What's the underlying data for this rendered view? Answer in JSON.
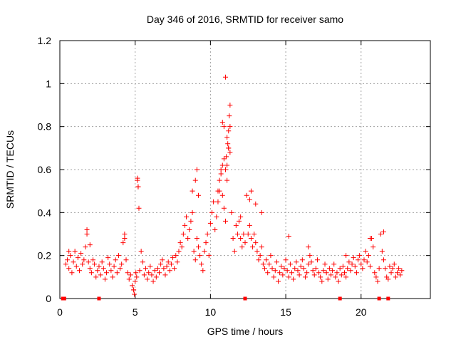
{
  "chart_data": {
    "type": "scatter",
    "title": "Day 346 of 2016, SRMTID for receiver samo",
    "xlabel": "GPS time / hours",
    "ylabel": "SRMTID / TECUs",
    "xlim": [
      0,
      24.6
    ],
    "ylim": [
      0,
      1.2
    ],
    "x_ticks": [
      0,
      5,
      10,
      15,
      20
    ],
    "x_tick_labels": [
      "0",
      "5",
      "10",
      "15",
      "20"
    ],
    "y_ticks": [
      0,
      0.2,
      0.4,
      0.6,
      0.8,
      1.0,
      1.2
    ],
    "y_tick_labels": [
      "0",
      "0.2",
      "0.4",
      "0.6",
      "0.8",
      "1",
      "1.2"
    ],
    "grid": true,
    "legend": "none",
    "marker": "plus",
    "color": "#ff0000",
    "series": [
      {
        "name": "SRMTID",
        "x": [
          0.4,
          0.5,
          0.6,
          0.7,
          0.8,
          0.9,
          1.0,
          1.1,
          1.2,
          1.3,
          1.4,
          1.5,
          1.6,
          1.7,
          1.8,
          1.9,
          2.0,
          2.1,
          2.2,
          2.3,
          2.4,
          2.5,
          2.6,
          2.7,
          2.8,
          2.9,
          3.0,
          3.1,
          3.2,
          3.3,
          3.4,
          3.5,
          3.6,
          3.7,
          3.8,
          3.9,
          4.0,
          4.1,
          4.2,
          4.3,
          4.4,
          4.5,
          4.6,
          4.7,
          4.8,
          4.9,
          5.0,
          5.05,
          5.1,
          5.15,
          5.2,
          5.25,
          5.3,
          5.4,
          5.5,
          5.6,
          5.7,
          5.8,
          5.9,
          6.0,
          6.1,
          6.2,
          6.3,
          6.4,
          6.5,
          6.6,
          6.7,
          6.8,
          6.9,
          7.0,
          7.1,
          7.2,
          7.3,
          7.4,
          7.5,
          7.6,
          7.7,
          7.8,
          7.9,
          8.0,
          8.1,
          8.2,
          8.3,
          8.4,
          8.5,
          8.6,
          8.7,
          8.8,
          8.9,
          9.0,
          9.1,
          9.2,
          9.3,
          9.4,
          9.5,
          9.6,
          9.7,
          9.8,
          9.9,
          10.0,
          10.1,
          10.2,
          10.3,
          10.4,
          10.5,
          10.6,
          10.7,
          10.8,
          10.9,
          11.0,
          11.1,
          11.2,
          11.3,
          11.4,
          11.5,
          11.6,
          11.7,
          11.8,
          11.9,
          12.0,
          12.1,
          12.2,
          12.3,
          12.4,
          12.5,
          12.6,
          12.7,
          12.8,
          12.9,
          13.0,
          13.1,
          13.2,
          13.3,
          13.4,
          13.5,
          13.6,
          13.7,
          13.8,
          13.9,
          14.0,
          14.1,
          14.2,
          14.3,
          14.4,
          14.5,
          14.6,
          14.7,
          14.8,
          14.9,
          15.0,
          15.1,
          15.2,
          15.3,
          15.4,
          15.5,
          15.6,
          15.7,
          15.8,
          15.9,
          16.0,
          16.1,
          16.2,
          16.3,
          16.4,
          16.5,
          16.6,
          16.7,
          16.8,
          16.9,
          17.0,
          17.1,
          17.2,
          17.3,
          17.4,
          17.5,
          17.6,
          17.7,
          17.8,
          17.9,
          18.0,
          18.1,
          18.2,
          18.3,
          18.4,
          18.5,
          18.6,
          18.7,
          18.8,
          18.9,
          19.0,
          19.1,
          19.2,
          19.3,
          19.4,
          19.5,
          19.6,
          19.7,
          19.8,
          19.9,
          20.0,
          20.1,
          20.2,
          20.3,
          20.4,
          20.5,
          20.6,
          20.7,
          20.8,
          20.9,
          21.0,
          21.1,
          21.2,
          21.3,
          21.4,
          21.5,
          21.6,
          21.7,
          21.8,
          21.9,
          22.0,
          22.1,
          22.2,
          22.3,
          22.4,
          22.5,
          22.6,
          22.7,
          5.15,
          5.2,
          9.1,
          9.0,
          8.8,
          9.2,
          10.5,
          10.6,
          10.7,
          10.8,
          10.9,
          11.0,
          11.05,
          11.1,
          11.15,
          11.2,
          11.25,
          11.3,
          11.0,
          10.9,
          11.1,
          11.2,
          10.8,
          11.3,
          12.6,
          12.7,
          13.4,
          12.0,
          1.8,
          4.3,
          0.6,
          2.0,
          15.2,
          20.6,
          21.5,
          4.9,
          4.95,
          13.0,
          16.5,
          19.0
        ],
        "y": [
          0.16,
          0.18,
          0.14,
          0.2,
          0.12,
          0.17,
          0.22,
          0.15,
          0.19,
          0.13,
          0.21,
          0.16,
          0.18,
          0.24,
          0.3,
          0.17,
          0.14,
          0.12,
          0.18,
          0.16,
          0.1,
          0.13,
          0.15,
          0.11,
          0.17,
          0.14,
          0.09,
          0.12,
          0.19,
          0.16,
          0.13,
          0.1,
          0.15,
          0.18,
          0.12,
          0.2,
          0.14,
          0.16,
          0.26,
          0.28,
          0.18,
          0.12,
          0.09,
          0.11,
          0.06,
          0.04,
          0.08,
          0.12,
          0.1,
          0.55,
          0.52,
          0.42,
          0.13,
          0.22,
          0.17,
          0.11,
          0.14,
          0.09,
          0.12,
          0.15,
          0.11,
          0.08,
          0.13,
          0.1,
          0.14,
          0.12,
          0.16,
          0.18,
          0.14,
          0.11,
          0.15,
          0.17,
          0.13,
          0.16,
          0.19,
          0.14,
          0.2,
          0.17,
          0.22,
          0.26,
          0.24,
          0.3,
          0.34,
          0.38,
          0.28,
          0.32,
          0.36,
          0.4,
          0.22,
          0.18,
          0.28,
          0.24,
          0.2,
          0.16,
          0.13,
          0.22,
          0.26,
          0.3,
          0.2,
          0.35,
          0.4,
          0.45,
          0.32,
          0.38,
          0.5,
          0.55,
          0.6,
          0.48,
          0.42,
          0.36,
          0.62,
          0.7,
          0.8,
          0.4,
          0.28,
          0.22,
          0.34,
          0.3,
          0.36,
          0.28,
          0.24,
          0.3,
          0.26,
          0.48,
          0.3,
          0.34,
          0.28,
          0.24,
          0.3,
          0.26,
          0.22,
          0.18,
          0.2,
          0.24,
          0.16,
          0.14,
          0.18,
          0.12,
          0.16,
          0.2,
          0.14,
          0.1,
          0.13,
          0.17,
          0.08,
          0.12,
          0.15,
          0.11,
          0.14,
          0.18,
          0.13,
          0.1,
          0.16,
          0.12,
          0.09,
          0.14,
          0.17,
          0.13,
          0.11,
          0.15,
          0.18,
          0.14,
          0.1,
          0.12,
          0.16,
          0.2,
          0.17,
          0.13,
          0.11,
          0.14,
          0.18,
          0.12,
          0.1,
          0.08,
          0.13,
          0.16,
          0.12,
          0.09,
          0.14,
          0.11,
          0.13,
          0.16,
          0.1,
          0.12,
          0.08,
          0.14,
          0.11,
          0.15,
          0.12,
          0.1,
          0.14,
          0.17,
          0.13,
          0.16,
          0.19,
          0.15,
          0.12,
          0.18,
          0.2,
          0.16,
          0.14,
          0.18,
          0.22,
          0.17,
          0.2,
          0.15,
          0.28,
          0.24,
          0.12,
          0.1,
          0.08,
          0.14,
          0.3,
          0.22,
          0.18,
          0.14,
          0.1,
          0.09,
          0.15,
          0.12,
          0.14,
          0.16,
          0.1,
          0.12,
          0.14,
          0.11,
          0.13,
          0.56,
          0.52,
          0.6,
          0.55,
          0.5,
          0.48,
          0.45,
          0.5,
          0.58,
          0.62,
          0.65,
          0.6,
          0.66,
          0.55,
          0.72,
          0.78,
          0.85,
          0.9,
          1.03,
          0.8,
          0.75,
          0.7,
          0.82,
          0.68,
          0.46,
          0.5,
          0.4,
          0.38,
          0.32,
          0.3,
          0.22,
          0.25,
          0.29,
          0.28,
          0.31,
          0.04,
          0.02,
          0.44,
          0.24,
          0.2
        ]
      }
    ],
    "axis_markers_x": [
      0.2,
      0.3,
      2.6,
      12.3,
      18.6,
      21.2,
      21.8
    ]
  }
}
